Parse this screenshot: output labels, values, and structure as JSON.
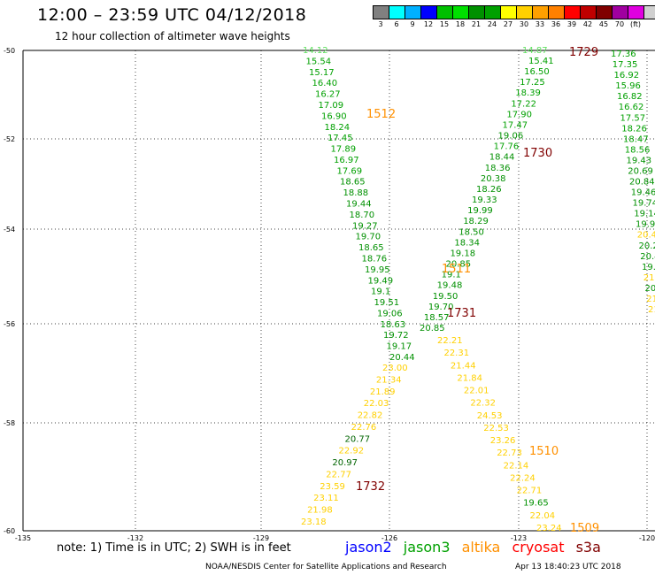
{
  "header": {
    "title": "12:00 – 23:59 UTC 04/12/2018",
    "subtitle": "12 hour collection of altimeter wave heights"
  },
  "color_scale": {
    "colors": [
      "#808080",
      "#00ffff",
      "#00b0ff",
      "#0000ff",
      "#00c000",
      "#00e000",
      "#009000",
      "#00a000",
      "#ffff00",
      "#ffd000",
      "#ffa000",
      "#ff8000",
      "#ff0000",
      "#c00000",
      "#800000",
      "#a000a0",
      "#e000e0",
      "#d0d0d0",
      "#000000"
    ],
    "labels": [
      "3",
      "6",
      "9",
      "12",
      "15",
      "18",
      "21",
      "24",
      "27",
      "30",
      "33",
      "36",
      "39",
      "42",
      "45",
      "70",
      "(ft)"
    ]
  },
  "axes": {
    "lat_labels": [
      "-50",
      "-52",
      "-54",
      "-56",
      "-58",
      "-60"
    ],
    "lon_labels": [
      "-135",
      "-132",
      "-129",
      "-126",
      "-123",
      "-120"
    ]
  },
  "tracks": [
    {
      "satellite": "jason3",
      "pass_label": "1512",
      "pass_color": "#ff9000",
      "values": [
        "14.12",
        "15.54",
        "15.17",
        "16.40",
        "16.27",
        "17.09",
        "16.90",
        "18.24",
        "17.45",
        "17.89",
        "16.97",
        "17.69",
        "18.65",
        "18.88",
        "19.44",
        "18.70",
        "19.27",
        "19.70",
        "18.65",
        "18.76",
        "19.95",
        "19.49",
        "19.1",
        "19.51",
        "19.06",
        "18.63",
        "19.72",
        "19.17",
        "20.44"
      ],
      "colors": [
        "#60e060",
        "#00a000",
        "#00a000",
        "#00a000",
        "#00a000",
        "#00a000",
        "#00a000",
        "#00a000",
        "#00a000",
        "#00a000",
        "#00a000",
        "#00a000",
        "#009000",
        "#009000",
        "#009000",
        "#009000",
        "#009000",
        "#009000",
        "#009000",
        "#009000",
        "#009000",
        "#009000",
        "#009000",
        "#009000",
        "#009000",
        "#009000",
        "#009000",
        "#009000",
        "#009000"
      ]
    },
    {
      "satellite": "jason3",
      "pass_label": "1732",
      "pass_color": "#800000",
      "values": [
        "23.00",
        "21.34",
        "21.89",
        "22.03",
        "22.82",
        "22.76",
        "20.77",
        "22.92",
        "20.97",
        "22.77",
        "23.59",
        "23.11",
        "21.98",
        "23.18"
      ],
      "colors": [
        "#ffd000",
        "#ffd000",
        "#ffd000",
        "#ffd000",
        "#ffd000",
        "#ffd000",
        "#006400",
        "#ffd000",
        "#006400",
        "#ffd000",
        "#ffd000",
        "#ffd000",
        "#ffd000",
        "#ffd000"
      ]
    },
    {
      "satellite": "jason3",
      "pass_label": "1730",
      "pass_color": "#800000",
      "values": [
        "15.41",
        "16.50",
        "17.25",
        "18.39",
        "17.22",
        "17.90",
        "17.47",
        "19.06",
        "17.76",
        "18.44",
        "18.36",
        "20.38",
        "18.26",
        "19.33",
        "19.99",
        "18.29",
        "18.50",
        "18.34",
        "19.18",
        "20.85",
        "19.1",
        "19.48",
        "19.50",
        "19.70",
        "18.57",
        "20.85"
      ],
      "colors": [
        "#00a000",
        "#00a000",
        "#00a000",
        "#00a000",
        "#00a000",
        "#00a000",
        "#00a000",
        "#009000",
        "#00a000",
        "#009000",
        "#009000",
        "#009000",
        "#009000",
        "#009000",
        "#009000",
        "#009000",
        "#009000",
        "#009000",
        "#009000",
        "#009000",
        "#009000",
        "#009000",
        "#009000",
        "#009000",
        "#009000",
        "#009000"
      ]
    },
    {
      "satellite": "jason3",
      "pass_label": "1731",
      "pass_color": "#800000",
      "values": [
        "22.21",
        "22.31",
        "21.44",
        "21.84",
        "22.01",
        "22.32",
        "24.53",
        "22.53",
        "23.26",
        "22.73",
        "22.14",
        "22.24",
        "22.71",
        "19.65",
        "22.04",
        "23.24"
      ],
      "colors": [
        "#ffd000",
        "#ffd000",
        "#ffd000",
        "#ffd000",
        "#ffd000",
        "#ffd000",
        "#ffd000",
        "#ffd000",
        "#ffd000",
        "#ffd000",
        "#ffd000",
        "#ffd000",
        "#ffd000",
        "#009000",
        "#ffd000",
        "#ffd000"
      ]
    },
    {
      "satellite": "jason3",
      "pass_label": "1729",
      "pass_color": "#800000",
      "values": [
        "17.36",
        "17.35",
        "16.92",
        "15.96",
        "16.82",
        "16.62",
        "17.57",
        "18.26",
        "18.47",
        "18.56",
        "19.43",
        "20.69",
        "20.84",
        "19.46",
        "19.74",
        "19.14",
        "19.99",
        "20.4",
        "20.2",
        "20.4",
        "19.",
        "21.",
        "20.",
        "21.",
        "21."
      ],
      "colors": [
        "#00a000",
        "#00a000",
        "#00a000",
        "#00a000",
        "#00a000",
        "#00a000",
        "#00a000",
        "#00a000",
        "#00a000",
        "#00a000",
        "#009000",
        "#009000",
        "#009000",
        "#009000",
        "#009000",
        "#009000",
        "#009000",
        "#ffd000",
        "#009000",
        "#009000",
        "#009000",
        "#ffd000",
        "#009000",
        "#ffd000",
        "#ffd000"
      ]
    },
    {
      "satellite": "altika",
      "pass_label": "1511",
      "pass_color": "#ff9000",
      "values": [],
      "colors": []
    },
    {
      "satellite": "altika",
      "pass_label": "1510",
      "pass_color": "#ff9000",
      "values": [],
      "colors": []
    },
    {
      "satellite": "altika",
      "pass_label": "1509",
      "pass_color": "#ff9000",
      "values": [],
      "colors": []
    }
  ],
  "top_right_values": {
    "a": "14.87"
  },
  "note": "note:  1) Time is in UTC;  2) SWH is in feet",
  "legend": {
    "jason2": "jason2",
    "jason3": "jason3",
    "altika": "altika",
    "cryosat": "cryosat",
    "s3a": "s3a",
    "colors": {
      "jason2": "#0000ff",
      "jason3": "#00a000",
      "altika": "#ff9000",
      "cryosat": "#ff0000",
      "s3a": "#800000"
    }
  },
  "footer": {
    "left": "NOAA/NESDIS Center for Satellite Applications and Research",
    "right": "Apr 13 18:40:23 UTC 2018"
  }
}
